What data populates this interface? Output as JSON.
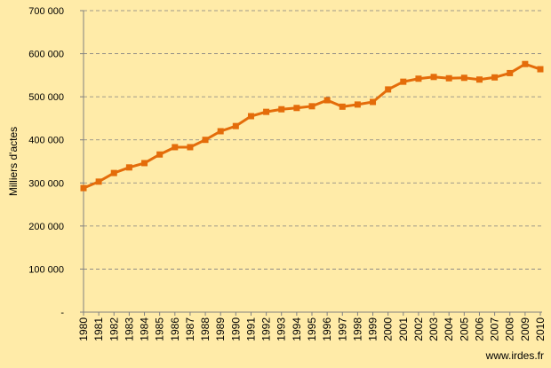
{
  "chart_data": {
    "type": "line",
    "y_label": "Milliers d'actes",
    "annotation": "www.irdes.fr",
    "categories": [
      "1980",
      "1981",
      "1982",
      "1983",
      "1984",
      "1985",
      "1986",
      "1987",
      "1988",
      "1989",
      "1990",
      "1991",
      "1992",
      "1993",
      "1994",
      "1995",
      "1996",
      "1997",
      "1998",
      "1999",
      "2000",
      "2001",
      "2002",
      "2003",
      "2004",
      "2005",
      "2006",
      "2007",
      "2008",
      "2009",
      "2010"
    ],
    "series": [
      {
        "color": "#e46c0a",
        "values": [
          288000,
          303000,
          323000,
          336000,
          346000,
          366000,
          383000,
          383000,
          400000,
          420000,
          432000,
          455000,
          465000,
          471000,
          474000,
          478000,
          492000,
          477000,
          482000,
          488000,
          517000,
          535000,
          542000,
          546000,
          543000,
          544000,
          540000,
          545000,
          555000,
          576000,
          564000
        ]
      }
    ],
    "ylim": [
      0,
      700000
    ],
    "yticks": [
      {
        "value": 0,
        "label": "-"
      },
      {
        "value": 100000,
        "label": "100 000"
      },
      {
        "value": 200000,
        "label": "200 000"
      },
      {
        "value": 300000,
        "label": "300 000"
      },
      {
        "value": 400000,
        "label": "400 000"
      },
      {
        "value": 500000,
        "label": "500 000"
      },
      {
        "value": 600000,
        "label": "600 000"
      },
      {
        "value": 700000,
        "label": "700 000"
      }
    ],
    "grid": true
  }
}
